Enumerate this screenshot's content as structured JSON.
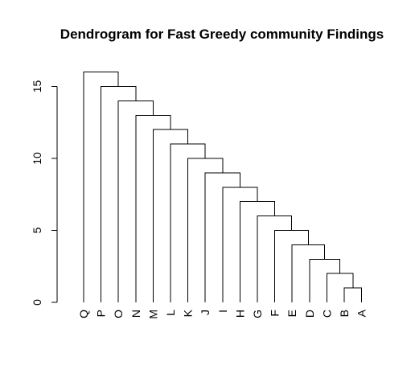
{
  "chart_data": {
    "type": "dendrogram",
    "title": "Dendrogram for Fast Greedy community Findings",
    "xlabel": "",
    "ylabel": "",
    "ylim": [
      0,
      16
    ],
    "y_ticks": [
      0,
      5,
      10,
      15
    ],
    "leaves": [
      "Q",
      "P",
      "O",
      "N",
      "M",
      "L",
      "K",
      "J",
      "I",
      "H",
      "G",
      "F",
      "E",
      "D",
      "C",
      "B",
      "A"
    ],
    "merges": [
      {
        "left": "B",
        "right": "A",
        "height": 1
      },
      {
        "left": "C",
        "right": "BA",
        "height": 2
      },
      {
        "left": "D",
        "right": "CBA",
        "height": 3
      },
      {
        "left": "E",
        "right": "DCBA",
        "height": 4
      },
      {
        "left": "F",
        "right": "EDCBA",
        "height": 5
      },
      {
        "left": "G",
        "right": "FEDCBA",
        "height": 6
      },
      {
        "left": "H",
        "right": "GFEDCBA",
        "height": 7
      },
      {
        "left": "I",
        "right": "HGFEDCBA",
        "height": 8
      },
      {
        "left": "J",
        "right": "IHGFEDCBA",
        "height": 9
      },
      {
        "left": "K",
        "right": "JIHGFEDCBA",
        "height": 10
      },
      {
        "left": "L",
        "right": "KJIHGFEDCBA",
        "height": 11
      },
      {
        "left": "M",
        "right": "LKJIHGFEDCBA",
        "height": 12
      },
      {
        "left": "N",
        "right": "MLKJIHGFEDCBA",
        "height": 13
      },
      {
        "left": "O",
        "right": "NMLKJIHGFEDCBA",
        "height": 14
      },
      {
        "left": "P",
        "right": "ONMLKJIHGFEDCBA",
        "height": 15
      },
      {
        "left": "Q",
        "right": "PONMLKJIHGFEDCBA",
        "height": 16
      }
    ],
    "grid": false,
    "legend": "none"
  }
}
